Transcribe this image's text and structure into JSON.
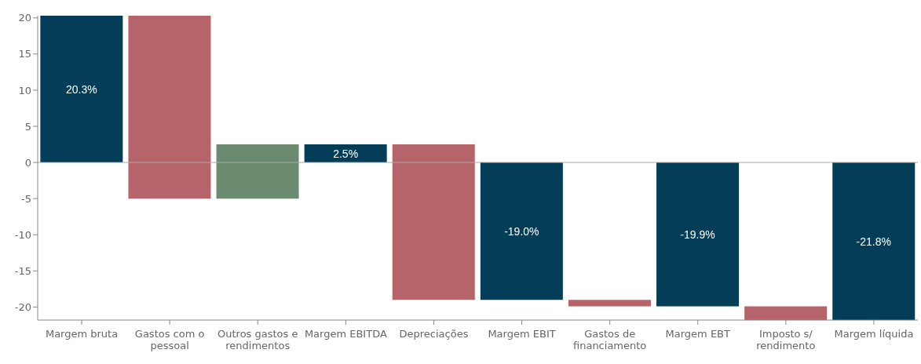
{
  "chart_data": {
    "type": "bar",
    "categories": [
      "Margem bruta",
      "Gastos com o pessoal",
      "Outros gastos e rendimentos",
      "Margem EBITDA",
      "Depreciações",
      "Margem EBIT",
      "Gastos de financiamento",
      "Margem EBT",
      "Imposto s/ rendimento",
      "Margem líquida"
    ],
    "base": [
      0,
      20.3,
      -5,
      0,
      2.5,
      0,
      -19.0,
      0,
      -19.9,
      0
    ],
    "values": [
      20.3,
      -25.3,
      7.5,
      2.5,
      -21.5,
      -19.0,
      -0.9,
      -19.9,
      -1.9,
      -21.8
    ],
    "colors": [
      "#033d58",
      "#b56569",
      "#6b8b70",
      "#033d58",
      "#b56569",
      "#033d58",
      "#b56569",
      "#033d58",
      "#b56569",
      "#033d58"
    ],
    "value_labels": [
      "20.3%",
      null,
      null,
      "2.5%",
      null,
      "-19.0%",
      null,
      "-19.9%",
      null,
      "-21.8%"
    ],
    "ylim": [
      -21.8,
      20.3
    ],
    "yticks": [
      -20,
      -15,
      -10,
      -5,
      0,
      5,
      10,
      15,
      20
    ]
  }
}
